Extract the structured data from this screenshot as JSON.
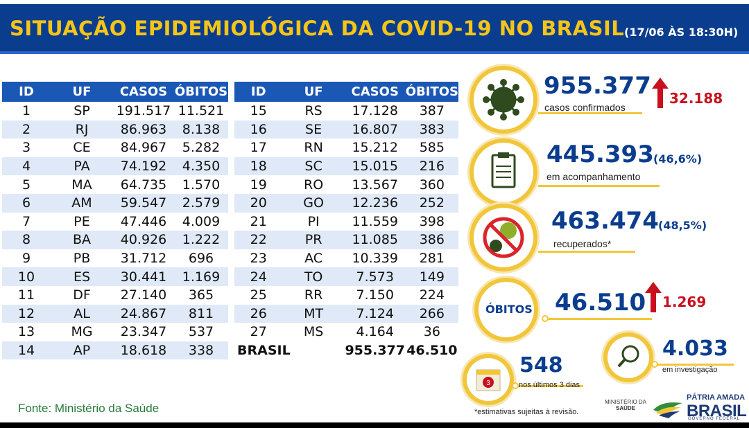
{
  "header": {
    "title": "SITUAÇÃO EPIDEMIOLÓGICA DA COVID-19 NO BRASIL",
    "date": "(17/06 ÀS 18:30H)"
  },
  "tables": {
    "columns": [
      "ID",
      "UF",
      "CASOS",
      "ÓBITOS"
    ],
    "left": [
      [
        "1",
        "SP",
        "191.517",
        "11.521"
      ],
      [
        "2",
        "RJ",
        "86.963",
        "8.138"
      ],
      [
        "3",
        "CE",
        "84.967",
        "5.282"
      ],
      [
        "4",
        "PA",
        "74.192",
        "4.350"
      ],
      [
        "5",
        "MA",
        "64.735",
        "1.570"
      ],
      [
        "6",
        "AM",
        "59.547",
        "2.579"
      ],
      [
        "7",
        "PE",
        "47.446",
        "4.009"
      ],
      [
        "8",
        "BA",
        "40.926",
        "1.222"
      ],
      [
        "9",
        "PB",
        "31.712",
        "696"
      ],
      [
        "10",
        "ES",
        "30.441",
        "1.169"
      ],
      [
        "11",
        "DF",
        "27.140",
        "365"
      ],
      [
        "12",
        "AL",
        "24.867",
        "811"
      ],
      [
        "13",
        "MG",
        "23.347",
        "537"
      ],
      [
        "14",
        "AP",
        "18.618",
        "338"
      ]
    ],
    "right": [
      [
        "15",
        "RS",
        "17.128",
        "387"
      ],
      [
        "16",
        "SE",
        "16.807",
        "383"
      ],
      [
        "17",
        "RN",
        "15.212",
        "585"
      ],
      [
        "18",
        "SC",
        "15.015",
        "216"
      ],
      [
        "19",
        "RO",
        "13.567",
        "360"
      ],
      [
        "20",
        "GO",
        "12.236",
        "252"
      ],
      [
        "21",
        "PI",
        "11.559",
        "398"
      ],
      [
        "22",
        "PR",
        "11.085",
        "386"
      ],
      [
        "23",
        "AC",
        "10.339",
        "281"
      ],
      [
        "24",
        "TO",
        "7.573",
        "149"
      ],
      [
        "25",
        "RR",
        "7.150",
        "224"
      ],
      [
        "26",
        "MT",
        "7.124",
        "266"
      ],
      [
        "27",
        "MS",
        "4.164",
        "36"
      ]
    ],
    "total": {
      "label": "BRASIL",
      "casos": "955.377",
      "obitos": "46.510"
    }
  },
  "source": "Fonte: Ministério da Saúde",
  "stats": {
    "confirmed": {
      "value": "955.377",
      "label": "casos confirmados",
      "delta": "32.188"
    },
    "monitoring": {
      "value": "445.393",
      "percent": "(46,6%)",
      "label": "em acompanhamento"
    },
    "recovered": {
      "value": "463.474",
      "percent": "(48,5%)",
      "label": "recuperados*"
    },
    "deaths": {
      "label": "ÓBITOS",
      "value": "46.510",
      "delta": "1.269"
    },
    "last3days": {
      "value": "548",
      "label": "nos últimos 3 dias"
    },
    "investigation": {
      "value": "4.033",
      "label": "em investigação"
    }
  },
  "footnote": "*estimativas sujeitas à revisão.",
  "logos": {
    "ministry_line1": "MINISTÉRIO DA",
    "ministry_line2": "SAÚDE",
    "patria": "PÁTRIA AMADA",
    "brasil": "BRASIL",
    "gov": "GOVERNO FEDERAL"
  },
  "colors": {
    "header_bg": "#0b3d8f",
    "title_yellow": "#f5c518",
    "table_header": "#1b57b5",
    "row_alt": "#dfe9f7",
    "accent_ring": "#f2c63a",
    "delta_red": "#c8101e"
  }
}
